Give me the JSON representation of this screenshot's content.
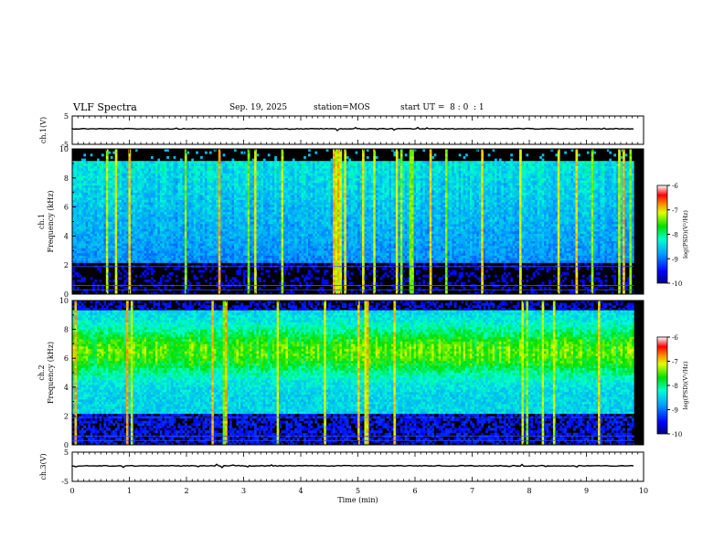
{
  "header": {
    "title": "VLF Spectra",
    "date": "Sep. 19, 2025",
    "station": "station=MOS",
    "start": "start UT =  8 : 0  : 1"
  },
  "chart_data": [
    {
      "type": "line",
      "panel": "ch1-waveform",
      "ylabel": "ch.1(V)",
      "ylim": [
        -5,
        5
      ],
      "yticks": [
        "5",
        "-5"
      ],
      "xlim": [
        0,
        10
      ],
      "description_values": {
        "baseline": 0
      }
    },
    {
      "type": "heatmap",
      "panel": "ch1-spectrogram",
      "ylabel": "ch.1\nFrequency (kHz)",
      "ylabel_line1": "ch.1",
      "ylabel_line2": "Frequency (kHz)",
      "ylim": [
        0,
        10
      ],
      "yticks": [
        "0",
        "2",
        "4",
        "6",
        "8",
        "10"
      ],
      "xlim": [
        0,
        10
      ],
      "colorbar": {
        "label": "log(PSD)(V²/Hz)",
        "range": [
          -10,
          -6
        ],
        "ticks": [
          "-6",
          "-7",
          "-8",
          "-9",
          "-10"
        ]
      }
    },
    {
      "type": "heatmap",
      "panel": "ch2-spectrogram",
      "ylabel_line1": "ch.2",
      "ylabel_line2": "Frequency (kHz)",
      "ylim": [
        0,
        10
      ],
      "yticks": [
        "0",
        "2",
        "4",
        "6",
        "8",
        "10"
      ],
      "xlim": [
        0,
        10
      ],
      "colorbar": {
        "label": "log(PSD)(V²/Hz)",
        "range": [
          -10,
          -6
        ],
        "ticks": [
          "-6",
          "-7",
          "-8",
          "-9",
          "-10"
        ]
      }
    },
    {
      "type": "line",
      "panel": "ch3-waveform",
      "ylabel": "ch.3(V)",
      "ylim": [
        -5,
        5
      ],
      "yticks": [
        "5",
        "-5"
      ],
      "xlim": [
        0,
        10
      ],
      "description_values": {
        "baseline": 0
      }
    }
  ],
  "xaxis": {
    "label": "Time (min)",
    "ticks": [
      "0",
      "1",
      "2",
      "3",
      "4",
      "5",
      "6",
      "7",
      "8",
      "9",
      "10"
    ],
    "range": [
      0,
      10
    ]
  },
  "colorbar_labels": {
    "psd": "log(PSD)(V",
    "psd_sup": "2",
    "psd_tail": "/Hz)"
  }
}
